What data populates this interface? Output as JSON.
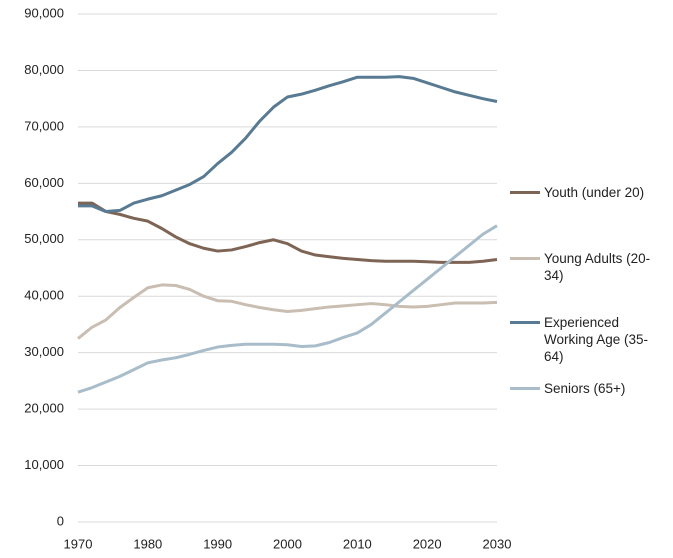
{
  "chart_data": {
    "type": "line",
    "x": [
      1970,
      1972,
      1974,
      1976,
      1978,
      1980,
      1982,
      1984,
      1986,
      1988,
      1990,
      1992,
      1994,
      1996,
      1998,
      2000,
      2002,
      2004,
      2006,
      2008,
      2010,
      2012,
      2014,
      2016,
      2018,
      2020,
      2022,
      2024,
      2026,
      2028,
      2030
    ],
    "series": [
      {
        "name": "Youth (under 20)",
        "color": "#7e6454",
        "values": [
          56500,
          56500,
          55000,
          54500,
          53800,
          53300,
          52000,
          50500,
          49300,
          48500,
          48000,
          48200,
          48800,
          49500,
          50000,
          49300,
          48000,
          47300,
          47000,
          46700,
          46500,
          46300,
          46200,
          46200,
          46200,
          46100,
          46000,
          46000,
          46000,
          46200,
          46500
        ]
      },
      {
        "name": "Young Adults (20-34)",
        "color": "#cabdb2",
        "values": [
          32500,
          34500,
          35800,
          38000,
          39800,
          41500,
          42000,
          41900,
          41200,
          40000,
          39200,
          39100,
          38500,
          38000,
          37600,
          37300,
          37500,
          37800,
          38100,
          38300,
          38500,
          38700,
          38500,
          38200,
          38100,
          38200,
          38500,
          38800,
          38800,
          38800,
          38900
        ]
      },
      {
        "name": "Experienced Working Age (35-64)",
        "color": "#587a92",
        "values": [
          56000,
          56000,
          55000,
          55200,
          56500,
          57200,
          57800,
          58800,
          59800,
          61200,
          63500,
          65500,
          68000,
          71000,
          73500,
          75300,
          75800,
          76500,
          77300,
          78000,
          78800,
          78800,
          78800,
          78900,
          78600,
          77800,
          77000,
          76200,
          75600,
          75000,
          74500
        ]
      },
      {
        "name": "Seniors (65+)",
        "color": "#a8bdc9",
        "values": [
          23000,
          23800,
          24800,
          25800,
          27000,
          28200,
          28700,
          29100,
          29700,
          30400,
          31000,
          31300,
          31500,
          31500,
          31500,
          31400,
          31100,
          31200,
          31800,
          32700,
          33500,
          35000,
          37000,
          39000,
          41000,
          43000,
          45000,
          47000,
          49000,
          51000,
          52500
        ]
      }
    ],
    "xlim": [
      1970,
      2030
    ],
    "xticks": [
      1970,
      1980,
      1990,
      2000,
      2010,
      2020,
      2030
    ],
    "ylim": [
      0,
      90000
    ],
    "yticks": [
      0,
      {
        "value": 10000,
        "label": "10,000"
      },
      {
        "value": 20000,
        "label": "20,000"
      },
      {
        "value": 30000,
        "label": "30,000"
      },
      {
        "value": 40000,
        "label": "40,000"
      },
      {
        "value": 50000,
        "label": "50,000"
      },
      {
        "value": 60000,
        "label": "60,000"
      },
      {
        "value": 70000,
        "label": "70,000"
      },
      {
        "value": 80000,
        "label": "80,000"
      },
      {
        "value": 90000,
        "label": "90,000"
      }
    ],
    "grid": true,
    "legend": "right"
  }
}
